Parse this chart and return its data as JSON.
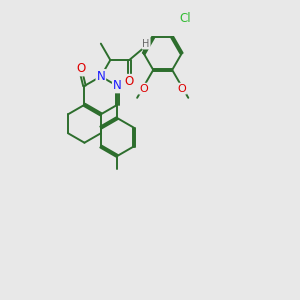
{
  "bg_color": "#e8e8e8",
  "bond_color": "#2d6e2d",
  "bond_width": 1.4,
  "atom_colors": {
    "N": "#1a1aff",
    "O": "#dd0000",
    "Cl": "#33bb33",
    "H": "#666666",
    "C": "#2d6e2d"
  },
  "dbo": 0.055
}
